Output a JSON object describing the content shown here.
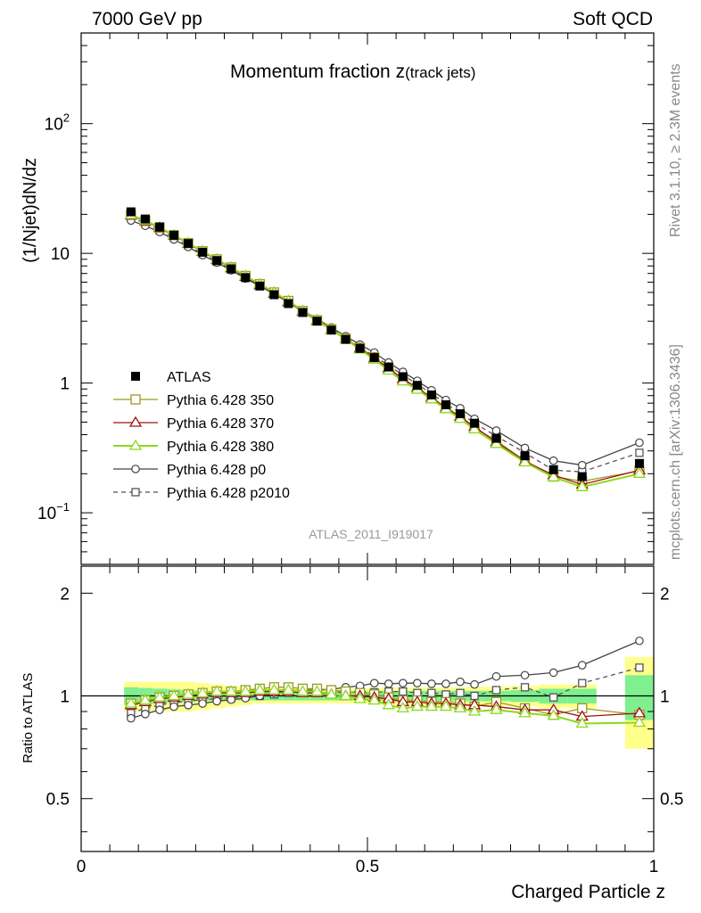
{
  "header": {
    "left": "7000 GeV pp",
    "right": "Soft QCD"
  },
  "side_labels": {
    "rivet": "Rivet 3.1.10, ≥ 2.3M events",
    "mcplots": "mcplots.cern.ch [arXiv:1306.3436]"
  },
  "colors": {
    "ATLAS": "#000000",
    "Pythia 6.428 350": "#9a9a1c",
    "Pythia 6.428 370": "#a01010",
    "Pythia 6.428 380": "#8ed81c",
    "Pythia 6.428 p0": "#444444",
    "Pythia 6.428 p2010": "#555555",
    "band_inner": "#7fef8f",
    "band_outer": "#ffff8c"
  },
  "chart_data": [
    {
      "type": "line",
      "panel": "main",
      "title": "Momentum fraction z",
      "title_sub": "(track jets)",
      "ylabel": "(1/Njet)dN/dz",
      "xlabel": "",
      "xlim": [
        0,
        1
      ],
      "ylim": [
        0.04,
        500
      ],
      "yscale": "log",
      "yticks": [
        {
          "v": 0.1,
          "base": "10",
          "exp": "−1"
        },
        {
          "v": 1,
          "label": "1"
        },
        {
          "v": 10,
          "label": "10"
        },
        {
          "v": 100,
          "base": "10",
          "exp": "2"
        }
      ],
      "legend_position": "center-left",
      "watermark": "ATLAS_2011_I919017",
      "x": [
        0.087,
        0.112,
        0.137,
        0.162,
        0.187,
        0.212,
        0.237,
        0.262,
        0.287,
        0.312,
        0.337,
        0.362,
        0.387,
        0.412,
        0.437,
        0.462,
        0.487,
        0.512,
        0.537,
        0.562,
        0.587,
        0.612,
        0.637,
        0.662,
        0.687,
        0.725,
        0.775,
        0.825,
        0.875,
        0.975
      ],
      "series": [
        {
          "name": "ATLAS",
          "marker": "filled-square",
          "values": [
            20.9,
            18.4,
            16.0,
            13.8,
            11.9,
            10.2,
            8.8,
            7.6,
            6.5,
            5.6,
            4.8,
            4.1,
            3.5,
            3.0,
            2.56,
            2.17,
            1.85,
            1.57,
            1.33,
            1.12,
            0.96,
            0.81,
            0.68,
            0.58,
            0.49,
            0.375,
            0.275,
            0.215,
            0.19,
            0.24
          ]
        },
        {
          "name": "Pythia 6.428 350",
          "marker": "open-square",
          "line": "solid",
          "values": [
            19.8,
            17.8,
            15.8,
            13.8,
            12.0,
            10.4,
            9.0,
            7.8,
            6.7,
            5.8,
            5.0,
            4.3,
            3.6,
            3.06,
            2.6,
            2.2,
            1.87,
            1.58,
            1.3,
            1.08,
            0.92,
            0.77,
            0.65,
            0.55,
            0.45,
            0.36,
            0.252,
            0.19,
            0.175,
            0.21
          ]
        },
        {
          "name": "Pythia 6.428 370",
          "marker": "open-triangle",
          "line": "solid",
          "values": [
            19.6,
            17.7,
            15.7,
            13.7,
            11.9,
            10.3,
            8.9,
            7.7,
            6.6,
            5.7,
            4.9,
            4.2,
            3.55,
            3.02,
            2.57,
            2.18,
            1.85,
            1.55,
            1.3,
            1.07,
            0.92,
            0.77,
            0.645,
            0.55,
            0.46,
            0.35,
            0.25,
            0.195,
            0.165,
            0.213
          ]
        },
        {
          "name": "Pythia 6.428 380",
          "marker": "open-triangle",
          "line": "solid",
          "values": [
            19.8,
            17.9,
            15.9,
            13.8,
            12.0,
            10.4,
            9.0,
            7.8,
            6.7,
            5.8,
            5.0,
            4.3,
            3.6,
            3.06,
            2.58,
            2.18,
            1.82,
            1.52,
            1.25,
            1.03,
            0.89,
            0.75,
            0.63,
            0.53,
            0.44,
            0.34,
            0.245,
            0.188,
            0.158,
            0.2
          ]
        },
        {
          "name": "Pythia 6.428 p0",
          "marker": "open-circle",
          "line": "solid",
          "values": [
            17.9,
            16.3,
            14.6,
            12.8,
            11.2,
            9.7,
            8.5,
            7.4,
            6.4,
            5.6,
            4.9,
            4.25,
            3.64,
            3.12,
            2.68,
            2.3,
            1.98,
            1.72,
            1.44,
            1.22,
            1.04,
            0.88,
            0.74,
            0.64,
            0.53,
            0.43,
            0.316,
            0.252,
            0.233,
            0.347
          ]
        },
        {
          "name": "Pythia 6.428 p2010",
          "marker": "open-square-dashed",
          "line": "dashed",
          "values": [
            18.9,
            17.0,
            15.1,
            13.2,
            11.5,
            9.9,
            8.6,
            7.5,
            6.5,
            5.6,
            4.85,
            4.2,
            3.6,
            3.07,
            2.62,
            2.24,
            1.9,
            1.61,
            1.37,
            1.15,
            0.98,
            0.83,
            0.69,
            0.59,
            0.49,
            0.39,
            0.29,
            0.213,
            0.207,
            0.29
          ]
        }
      ]
    },
    {
      "type": "line",
      "panel": "ratio",
      "ylabel": "Ratio to ATLAS",
      "xlabel": "Charged Particle z",
      "xlim": [
        0,
        1
      ],
      "ylim": [
        0.35,
        2.4
      ],
      "yscale": "log",
      "yticks": [
        {
          "v": 0.5,
          "label": "0.5"
        },
        {
          "v": 1,
          "label": "1"
        },
        {
          "v": 2,
          "label": "2"
        }
      ],
      "xticks": [
        {
          "v": 0,
          "label": "0"
        },
        {
          "v": 0.5,
          "label": "0.5"
        },
        {
          "v": 1,
          "label": "1"
        }
      ],
      "x": [
        0.087,
        0.112,
        0.137,
        0.162,
        0.187,
        0.212,
        0.237,
        0.262,
        0.287,
        0.312,
        0.337,
        0.362,
        0.387,
        0.412,
        0.437,
        0.462,
        0.487,
        0.512,
        0.537,
        0.562,
        0.587,
        0.612,
        0.637,
        0.662,
        0.687,
        0.725,
        0.775,
        0.825,
        0.875,
        0.975
      ],
      "bin_edges": [
        0.075,
        0.1,
        0.125,
        0.15,
        0.175,
        0.2,
        0.225,
        0.25,
        0.275,
        0.3,
        0.325,
        0.35,
        0.375,
        0.4,
        0.425,
        0.45,
        0.475,
        0.5,
        0.525,
        0.55,
        0.575,
        0.6,
        0.625,
        0.65,
        0.675,
        0.7,
        0.75,
        0.8,
        0.85,
        0.9,
        0.95,
        1.0
      ],
      "band_inner": [
        0.06,
        0.055,
        0.05,
        0.045,
        0.04,
        0.035,
        0.032,
        0.03,
        0.03,
        0.03,
        0.03,
        0.03,
        0.03,
        0.03,
        0.03,
        0.03,
        0.03,
        0.032,
        0.035,
        0.035,
        0.035,
        0.035,
        0.035,
        0.035,
        0.035,
        0.035,
        0.04,
        0.05,
        0.05,
        null,
        0.15
      ],
      "band_outer": [
        0.1,
        0.1,
        0.1,
        0.1,
        0.1,
        0.09,
        0.08,
        0.07,
        0.06,
        0.05,
        0.05,
        0.05,
        0.05,
        0.05,
        0.05,
        0.05,
        0.05,
        0.055,
        0.06,
        0.06,
        0.06,
        0.06,
        0.06,
        0.06,
        0.065,
        0.065,
        0.07,
        0.08,
        0.08,
        null,
        0.3
      ],
      "series": [
        {
          "name": "Pythia 6.428 350",
          "values": [
            0.95,
            0.97,
            0.99,
            1.0,
            1.01,
            1.02,
            1.03,
            1.03,
            1.04,
            1.05,
            1.06,
            1.06,
            1.05,
            1.05,
            1.04,
            1.03,
            1.02,
            1.01,
            0.99,
            0.97,
            0.97,
            0.96,
            0.96,
            0.95,
            0.93,
            0.96,
            0.92,
            0.88,
            0.92,
            0.88
          ]
        },
        {
          "name": "Pythia 6.428 370",
          "values": [
            0.94,
            0.96,
            0.98,
            0.99,
            1.0,
            1.01,
            1.02,
            1.02,
            1.02,
            1.03,
            1.03,
            1.03,
            1.02,
            1.02,
            1.01,
            1.0,
            1.0,
            0.99,
            0.98,
            0.96,
            0.96,
            0.95,
            0.95,
            0.94,
            0.94,
            0.93,
            0.91,
            0.91,
            0.87,
            0.89
          ]
        },
        {
          "name": "Pythia 6.428 380",
          "values": [
            0.95,
            0.97,
            0.99,
            1.0,
            1.01,
            1.02,
            1.03,
            1.03,
            1.03,
            1.04,
            1.04,
            1.04,
            1.03,
            1.03,
            1.01,
            1.0,
            0.98,
            0.97,
            0.94,
            0.92,
            0.93,
            0.93,
            0.93,
            0.92,
            0.9,
            0.91,
            0.89,
            0.875,
            0.83,
            0.835
          ]
        },
        {
          "name": "Pythia 6.428 p0",
          "values": [
            0.86,
            0.885,
            0.91,
            0.93,
            0.94,
            0.95,
            0.965,
            0.975,
            0.985,
            1.0,
            1.02,
            1.035,
            1.04,
            1.04,
            1.045,
            1.06,
            1.07,
            1.09,
            1.085,
            1.09,
            1.09,
            1.085,
            1.085,
            1.1,
            1.08,
            1.14,
            1.15,
            1.17,
            1.23,
            1.45
          ]
        },
        {
          "name": "Pythia 6.428 p2010",
          "values": [
            0.89,
            0.92,
            0.94,
            0.955,
            0.965,
            0.975,
            0.98,
            0.985,
            1.0,
            1.0,
            1.01,
            1.02,
            1.03,
            1.02,
            1.02,
            1.03,
            1.03,
            1.025,
            1.03,
            1.03,
            1.02,
            1.02,
            1.01,
            1.02,
            1.0,
            1.04,
            1.06,
            0.99,
            1.09,
            1.21
          ]
        }
      ]
    }
  ]
}
